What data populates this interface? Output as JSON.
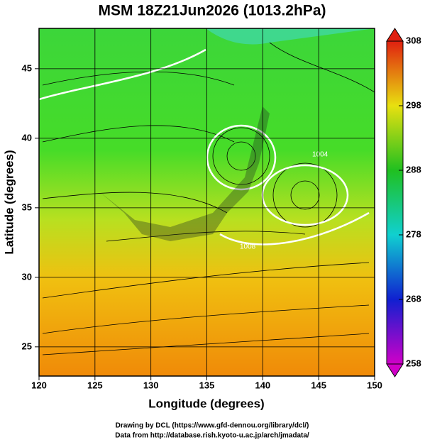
{
  "title": "MSM 18Z21Jun2026 (1013.2hPa)",
  "x_axis": {
    "label": "Longitude (degrees)",
    "lim": [
      120,
      150
    ],
    "ticks": [
      120,
      125,
      130,
      135,
      140,
      145,
      150
    ]
  },
  "y_axis": {
    "label": "Latitude  (degrees)",
    "lim": [
      22.9,
      47.9
    ],
    "ticks": [
      25,
      30,
      35,
      40,
      45
    ]
  },
  "colorbar": {
    "lim": [
      258,
      308
    ],
    "ticks": [
      258,
      268,
      278,
      288,
      298,
      308
    ]
  },
  "contour_labels": [
    "1004",
    "1008"
  ],
  "credits": [
    "Drawing by DCL (https://www.gfd-dennou.org/library/dcl/)",
    "Data from http://database.rish.kyoto-u.ac.jp/arch/jmadata/"
  ]
}
